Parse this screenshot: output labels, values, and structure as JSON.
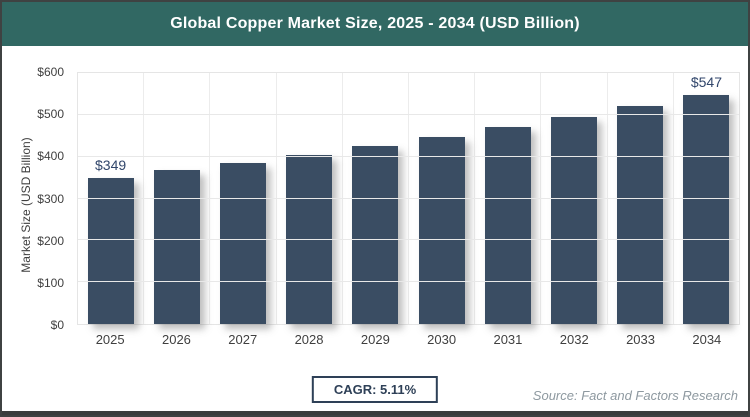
{
  "header": {
    "title": "Global Copper Market Size, 2025 - 2034 (USD Billion)"
  },
  "chart_data": {
    "type": "bar",
    "title": "Global Copper Market Size, 2025 - 2034 (USD Billion)",
    "categories": [
      "2025",
      "2026",
      "2027",
      "2028",
      "2029",
      "2030",
      "2031",
      "2032",
      "2033",
      "2034"
    ],
    "values": [
      349,
      367,
      386,
      405,
      426,
      448,
      471,
      495,
      520,
      547
    ],
    "data_labels": [
      "$349",
      "",
      "",
      "",
      "",
      "",
      "",
      "",
      "",
      "$547"
    ],
    "xlabel": "",
    "ylabel": "Market Size (USD Billion)",
    "ylim": [
      0,
      600
    ],
    "ytick_step": 100,
    "ytick_labels": [
      "$0",
      "$100",
      "$200",
      "$300",
      "$400",
      "$500",
      "$600"
    ],
    "grid": true,
    "legend": "none",
    "bar_color": "#3a4d63"
  },
  "footer": {
    "cagr_label": "CAGR: 5.11%",
    "source": "Source: Fact and Factors Research"
  },
  "colors": {
    "header_bg": "#316863",
    "bar": "#3a4d63",
    "bar_label_text": "#31466b",
    "axis_text": "#3f3f3f",
    "gridline": "#e8e8e8",
    "cagr_border": "#2e4057",
    "source_text": "#8e99a0",
    "frame_border": "#3f4242",
    "bottom_strip": "#3a3d3d"
  }
}
